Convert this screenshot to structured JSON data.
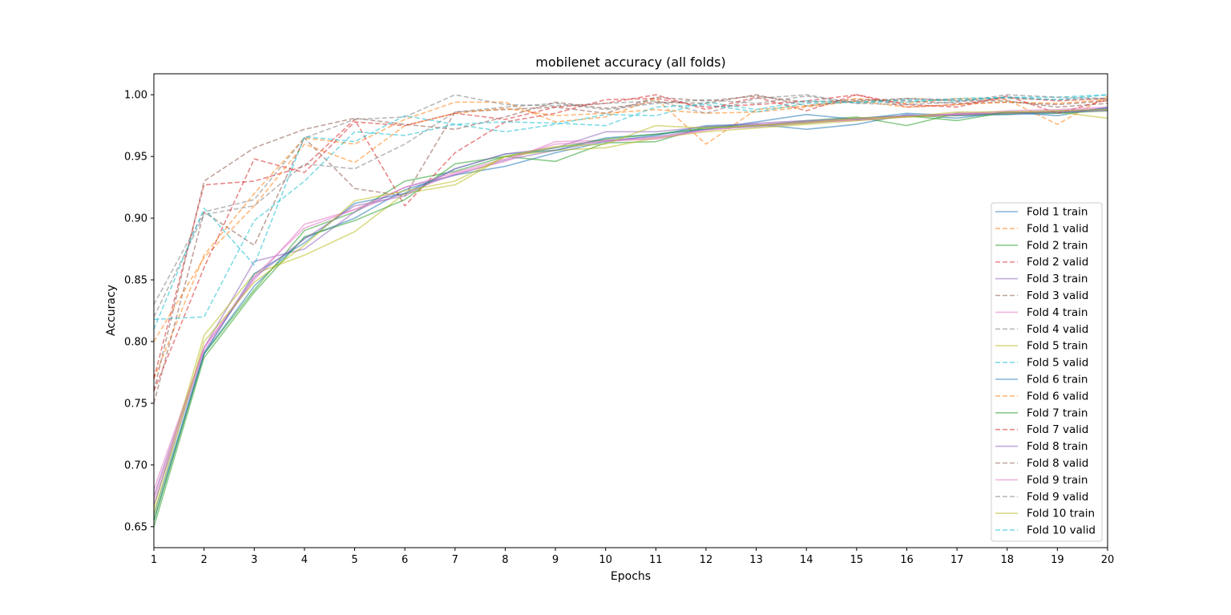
{
  "chart_data": {
    "type": "line",
    "title": "mobilenet accuracy (all folds)",
    "xlabel": "Epochs",
    "ylabel": "Accuracy",
    "xlim": [
      1,
      20
    ],
    "ylim": [
      0.633,
      1.017
    ],
    "xticks": [
      1,
      2,
      3,
      4,
      5,
      6,
      7,
      8,
      9,
      10,
      11,
      12,
      13,
      14,
      15,
      16,
      17,
      18,
      19,
      20
    ],
    "yticks": [
      "0.65",
      "0.70",
      "0.75",
      "0.80",
      "0.85",
      "0.90",
      "0.95",
      "1.00"
    ],
    "legend_position": "lower-right",
    "grid": false,
    "x": [
      1,
      2,
      3,
      4,
      5,
      6,
      7,
      8,
      9,
      10,
      11,
      12,
      13,
      14,
      15,
      16,
      17,
      18,
      19,
      20
    ],
    "series": [
      {
        "name": "Fold 1 train",
        "color": "#1f77b4",
        "style": "solid",
        "values": [
          0.655,
          0.79,
          0.845,
          0.884,
          0.9,
          0.923,
          0.935,
          0.942,
          0.953,
          0.962,
          0.967,
          0.975,
          0.976,
          0.972,
          0.976,
          0.984,
          0.981,
          0.986,
          0.983,
          0.99
        ]
      },
      {
        "name": "Fold 1 valid",
        "color": "#ff7f0e",
        "style": "dashed",
        "values": [
          0.77,
          0.87,
          0.92,
          0.965,
          0.96,
          0.98,
          0.994,
          0.994,
          0.978,
          0.982,
          0.997,
          0.96,
          0.988,
          0.991,
          0.997,
          0.993,
          0.997,
          0.996,
          0.976,
          0.999
        ]
      },
      {
        "name": "Fold 2 train",
        "color": "#2ca02c",
        "style": "solid",
        "values": [
          0.655,
          0.79,
          0.842,
          0.89,
          0.905,
          0.93,
          0.938,
          0.95,
          0.946,
          0.961,
          0.962,
          0.974,
          0.975,
          0.979,
          0.982,
          0.975,
          0.985,
          0.984,
          0.987,
          0.988
        ]
      },
      {
        "name": "Fold 2 valid",
        "color": "#d62728",
        "style": "dashed",
        "values": [
          0.77,
          0.927,
          0.93,
          0.942,
          0.98,
          0.91,
          0.953,
          0.978,
          0.985,
          0.996,
          0.997,
          0.99,
          0.992,
          0.995,
          1.0,
          0.99,
          0.992,
          0.998,
          0.995,
          0.997
        ]
      },
      {
        "name": "Fold 3 train",
        "color": "#9467bd",
        "style": "solid",
        "values": [
          0.675,
          0.795,
          0.865,
          0.875,
          0.905,
          0.925,
          0.935,
          0.947,
          0.955,
          0.963,
          0.966,
          0.972,
          0.974,
          0.977,
          0.98,
          0.982,
          0.984,
          0.985,
          0.986,
          0.988
        ]
      },
      {
        "name": "Fold 3 valid",
        "color": "#8c564b",
        "style": "dashed",
        "values": [
          0.75,
          0.905,
          0.878,
          0.965,
          0.924,
          0.918,
          0.986,
          0.988,
          0.99,
          0.985,
          0.998,
          0.995,
          0.999,
          0.994,
          0.996,
          0.995,
          0.993,
          0.994,
          0.992,
          0.995
        ]
      },
      {
        "name": "Fold 4 train",
        "color": "#e377c2",
        "style": "solid",
        "values": [
          0.68,
          0.795,
          0.85,
          0.895,
          0.907,
          0.92,
          0.936,
          0.946,
          0.962,
          0.963,
          0.964,
          0.972,
          0.976,
          0.978,
          0.979,
          0.982,
          0.985,
          0.986,
          0.987,
          0.989
        ]
      },
      {
        "name": "Fold 4 valid",
        "color": "#7f7f7f",
        "style": "dashed",
        "values": [
          0.82,
          0.903,
          0.91,
          0.944,
          0.94,
          0.96,
          0.986,
          0.99,
          0.993,
          0.988,
          0.993,
          0.996,
          0.993,
          0.999,
          0.993,
          0.997,
          0.996,
          0.997,
          0.996,
          0.997
        ]
      },
      {
        "name": "Fold 5 train",
        "color": "#bcbd22",
        "style": "solid",
        "values": [
          0.665,
          0.805,
          0.855,
          0.87,
          0.889,
          0.92,
          0.927,
          0.95,
          0.955,
          0.957,
          0.965,
          0.97,
          0.973,
          0.976,
          0.979,
          0.982,
          0.983,
          0.985,
          0.986,
          0.981
        ]
      },
      {
        "name": "Fold 5 valid",
        "color": "#17becf",
        "style": "dashed",
        "values": [
          0.818,
          0.82,
          0.898,
          0.93,
          0.97,
          0.967,
          0.976,
          0.97,
          0.976,
          0.984,
          0.983,
          0.994,
          0.988,
          0.995,
          0.994,
          0.994,
          0.997,
          0.998,
          0.998,
          1.0
        ]
      },
      {
        "name": "Fold 6 train",
        "color": "#1f77b4",
        "style": "solid",
        "values": [
          0.66,
          0.79,
          0.855,
          0.88,
          0.912,
          0.92,
          0.94,
          0.952,
          0.955,
          0.965,
          0.968,
          0.972,
          0.978,
          0.984,
          0.98,
          0.985,
          0.983,
          0.984,
          0.985,
          0.989
        ]
      },
      {
        "name": "Fold 6 valid",
        "color": "#ff7f0e",
        "style": "dashed",
        "values": [
          0.8,
          0.868,
          0.91,
          0.96,
          0.945,
          0.975,
          0.985,
          0.989,
          0.983,
          0.985,
          0.988,
          0.985,
          0.986,
          0.99,
          0.995,
          0.99,
          0.992,
          0.994,
          0.993,
          0.996
        ]
      },
      {
        "name": "Fold 7 train",
        "color": "#2ca02c",
        "style": "solid",
        "values": [
          0.65,
          0.787,
          0.84,
          0.885,
          0.898,
          0.915,
          0.944,
          0.95,
          0.957,
          0.964,
          0.968,
          0.973,
          0.975,
          0.978,
          0.981,
          0.983,
          0.979,
          0.986,
          0.985,
          0.987
        ]
      },
      {
        "name": "Fold 7 valid",
        "color": "#d62728",
        "style": "dashed",
        "values": [
          0.76,
          0.86,
          0.948,
          0.937,
          0.978,
          0.975,
          0.985,
          0.98,
          0.99,
          0.993,
          1.0,
          0.988,
          0.998,
          0.987,
          1.0,
          0.992,
          0.99,
          0.999,
          0.985,
          0.996
        ]
      },
      {
        "name": "Fold 8 train",
        "color": "#9467bd",
        "style": "solid",
        "values": [
          0.668,
          0.792,
          0.852,
          0.883,
          0.91,
          0.918,
          0.94,
          0.952,
          0.957,
          0.97,
          0.97,
          0.974,
          0.977,
          0.979,
          0.981,
          0.983,
          0.984,
          0.985,
          0.986,
          0.987
        ]
      },
      {
        "name": "Fold 8 valid",
        "color": "#8c564b",
        "style": "dashed",
        "values": [
          0.76,
          0.93,
          0.957,
          0.972,
          0.981,
          0.976,
          0.972,
          0.982,
          0.994,
          0.989,
          0.994,
          0.993,
          1.0,
          0.991,
          0.995,
          0.997,
          0.995,
          0.995,
          0.99,
          0.993
        ]
      },
      {
        "name": "Fold 9 train",
        "color": "#e377c2",
        "style": "solid",
        "values": [
          0.672,
          0.795,
          0.853,
          0.892,
          0.907,
          0.925,
          0.937,
          0.948,
          0.96,
          0.962,
          0.965,
          0.971,
          0.975,
          0.978,
          0.98,
          0.983,
          0.984,
          0.987,
          0.988,
          0.99
        ]
      },
      {
        "name": "Fold 9 valid",
        "color": "#7f7f7f",
        "style": "dashed",
        "values": [
          0.83,
          0.905,
          0.915,
          0.965,
          0.98,
          0.982,
          1.0,
          0.992,
          0.991,
          0.993,
          0.995,
          0.985,
          0.997,
          1.0,
          0.993,
          0.992,
          0.994,
          1.0,
          0.998,
          0.997
        ]
      },
      {
        "name": "Fold 10 train",
        "color": "#bcbd22",
        "style": "solid",
        "values": [
          0.66,
          0.8,
          0.848,
          0.878,
          0.914,
          0.922,
          0.93,
          0.95,
          0.958,
          0.96,
          0.975,
          0.973,
          0.975,
          0.977,
          0.981,
          0.982,
          0.986,
          0.986,
          0.987,
          0.988
        ]
      },
      {
        "name": "Fold 10 valid",
        "color": "#17becf",
        "style": "dashed",
        "values": [
          0.81,
          0.908,
          0.862,
          0.966,
          0.962,
          0.983,
          0.976,
          0.978,
          0.977,
          0.975,
          0.99,
          0.992,
          0.986,
          0.993,
          0.994,
          0.996,
          0.995,
          0.998,
          0.996,
          1.0
        ]
      }
    ]
  }
}
